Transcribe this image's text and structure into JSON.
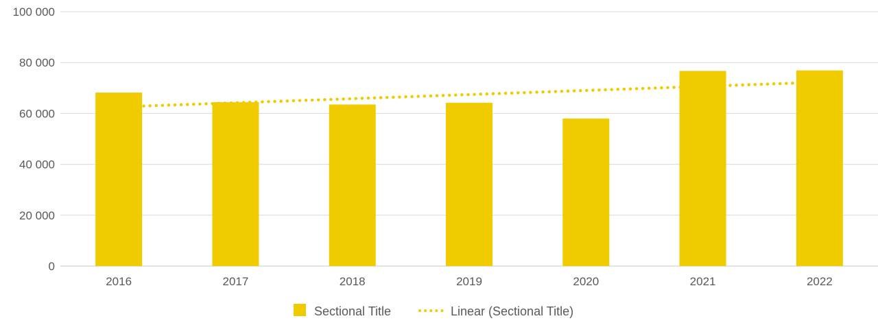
{
  "chart_data": {
    "type": "bar",
    "categories": [
      "2016",
      "2017",
      "2018",
      "2019",
      "2020",
      "2021",
      "2022"
    ],
    "series": [
      {
        "name": "Sectional Title",
        "type": "bar",
        "values": [
          68200,
          64400,
          63500,
          64200,
          58000,
          76700,
          76900
        ],
        "color": "#F0CB00"
      }
    ],
    "trendline": {
      "name": "Linear (Sectional Title)",
      "type": "linear",
      "style": "dotted",
      "color": "#F0CB00"
    },
    "ylim": [
      0,
      100000
    ],
    "yticks": [
      0,
      20000,
      40000,
      60000,
      80000,
      100000
    ],
    "ytick_labels": [
      "0",
      "20 000",
      "40 000",
      "60 000",
      "80 000",
      "100 000"
    ],
    "grid": true,
    "legend_position": "bottom-center",
    "title": "",
    "xlabel": "",
    "ylabel": ""
  }
}
